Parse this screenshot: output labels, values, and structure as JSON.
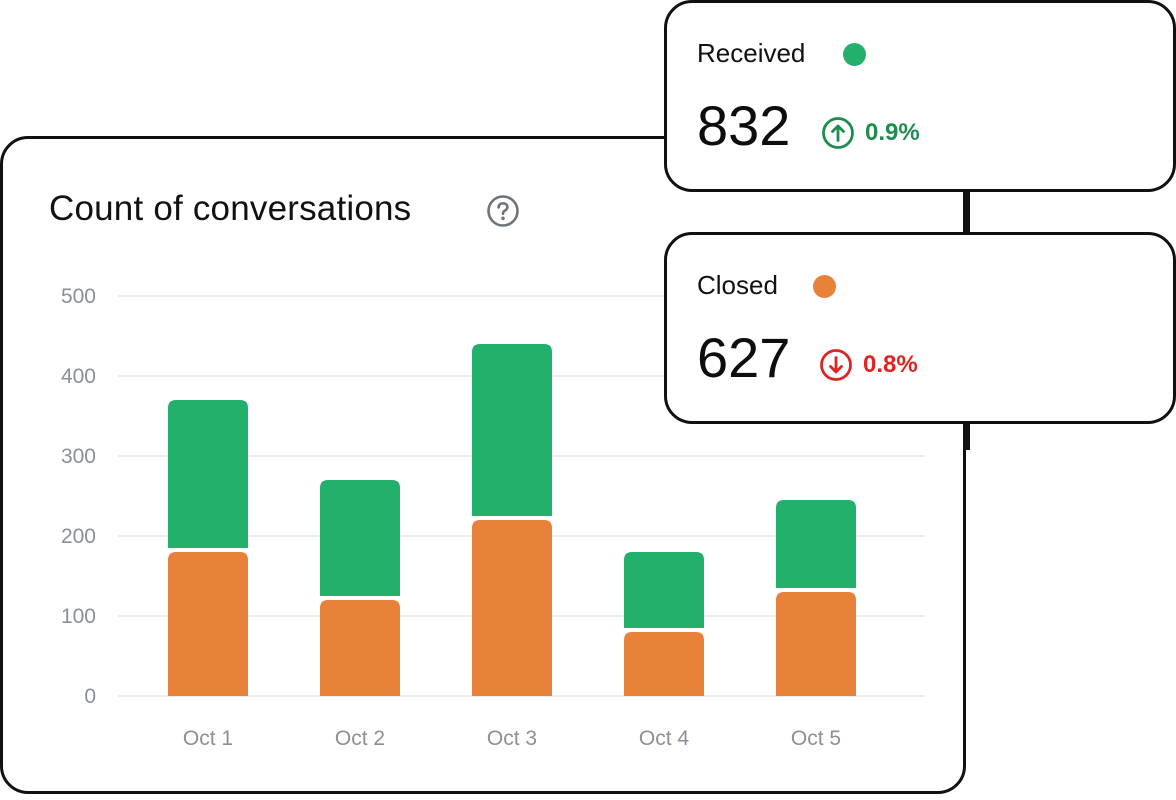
{
  "chart_data": {
    "type": "bar",
    "stacked": true,
    "title": "Count of conversations",
    "categories": [
      "Oct 1",
      "Oct 2",
      "Oct 3",
      "Oct 4",
      "Oct 5"
    ],
    "series": [
      {
        "name": "Closed",
        "color": "#E8823A",
        "values": [
          180,
          120,
          220,
          80,
          130
        ]
      },
      {
        "name": "Received",
        "color": "#22B06B",
        "values": [
          190,
          150,
          220,
          100,
          115
        ]
      }
    ],
    "yticks": [
      "0",
      "100",
      "200",
      "300",
      "400",
      "500"
    ],
    "ylim": [
      0,
      500
    ],
    "grid": true
  },
  "cards": {
    "received": {
      "label": "Received",
      "value": "832",
      "change": "0.9%",
      "direction": "up",
      "dot_color": "#22B06B",
      "trend_color": "#1E8E4E",
      "icon": "arrow-up-circle-icon"
    },
    "closed": {
      "label": "Closed",
      "value": "627",
      "change": "0.8%",
      "direction": "down",
      "dot_color": "#E8823A",
      "trend_color": "#E02424",
      "icon": "arrow-down-circle-icon"
    }
  },
  "icons": {
    "help": "question-circle-icon"
  }
}
